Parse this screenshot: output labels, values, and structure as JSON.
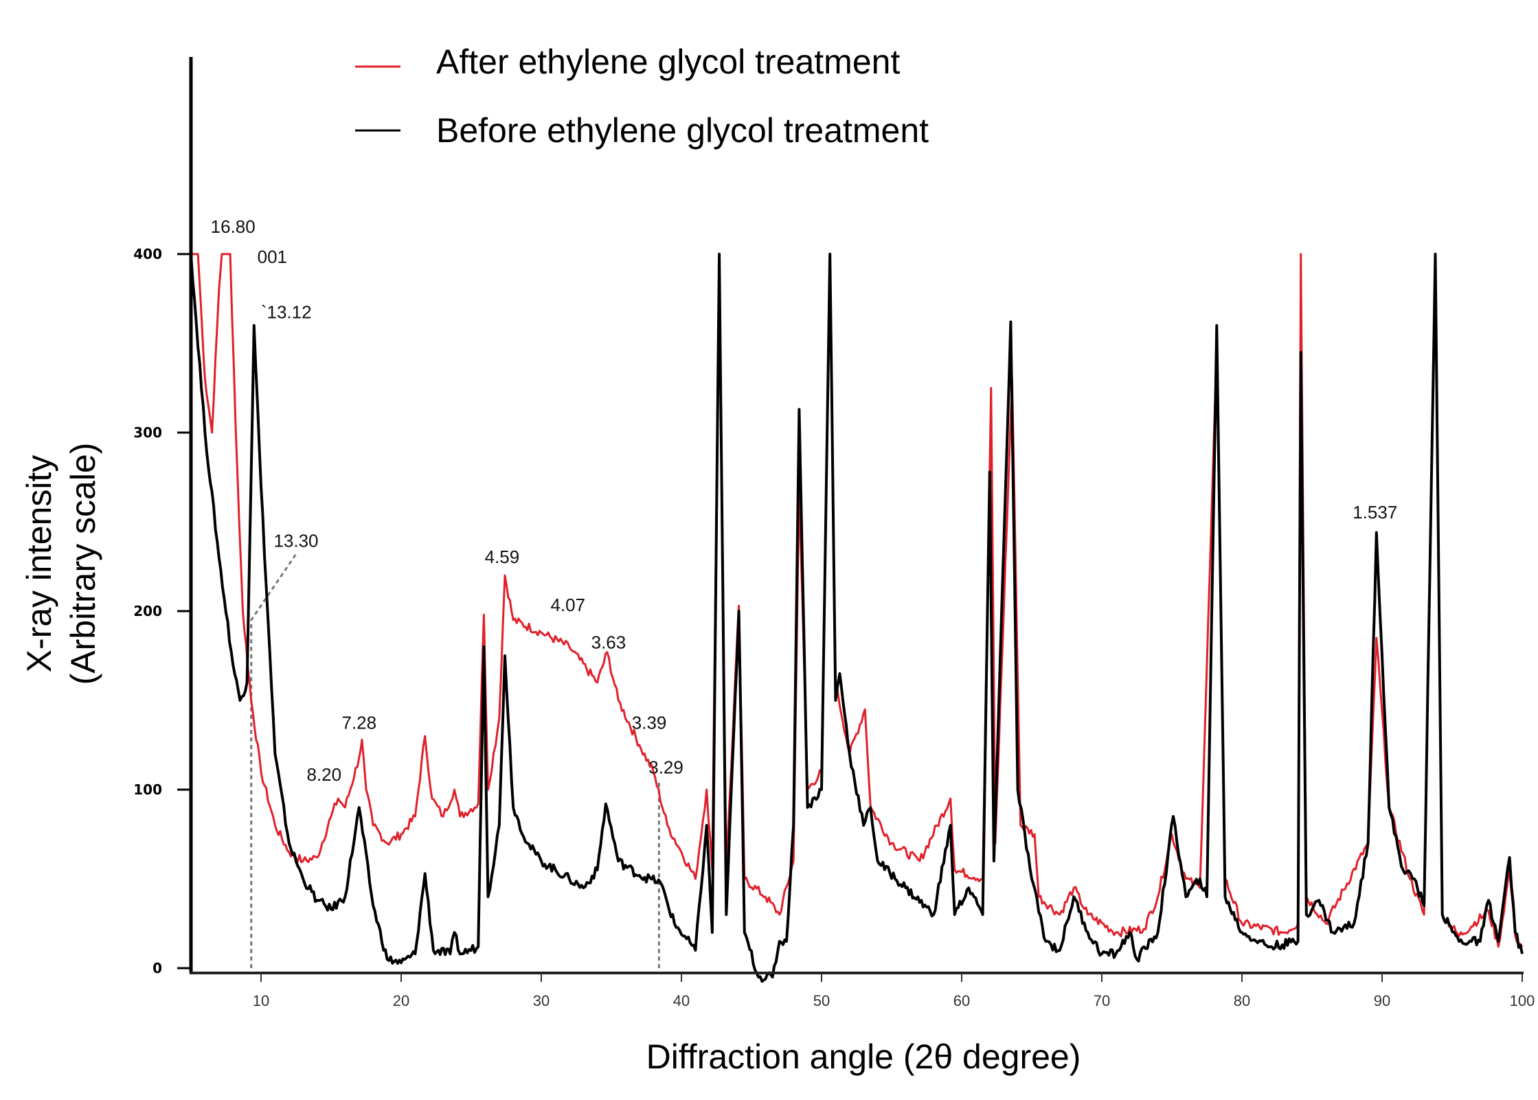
{
  "chart_data": {
    "type": "line",
    "title": "",
    "xlabel": "Diffraction angle (2θ degree)",
    "ylabel_line1": "X-ray intensity",
    "ylabel_line2": "(Arbitrary scale)",
    "xlim": [
      5,
      100
    ],
    "ylim": [
      0,
      400
    ],
    "xticks": [
      10,
      20,
      30,
      40,
      50,
      60,
      70,
      80,
      90,
      100
    ],
    "yticks": [
      0,
      100,
      200,
      300,
      400
    ],
    "grid": false,
    "legend_position": "top-left",
    "series": [
      {
        "name": "After ethylene glycol treatment",
        "color": "#e0202a",
        "points": [
          [
            5,
            400
          ],
          [
            5.5,
            400
          ],
          [
            6,
            330
          ],
          [
            6.5,
            300
          ],
          [
            7,
            380
          ],
          [
            7.2,
            400
          ],
          [
            7.8,
            400
          ],
          [
            8.2,
            300
          ],
          [
            8.7,
            200
          ],
          [
            9.3,
            150
          ],
          [
            10,
            110
          ],
          [
            11,
            80
          ],
          [
            12,
            65
          ],
          [
            13,
            60
          ],
          [
            14,
            62
          ],
          [
            15,
            85
          ],
          [
            15.5,
            95
          ],
          [
            16,
            90
          ],
          [
            17,
            118
          ],
          [
            17.2,
            128
          ],
          [
            17.5,
            100
          ],
          [
            18,
            80
          ],
          [
            19,
            70
          ],
          [
            20,
            75
          ],
          [
            21,
            85
          ],
          [
            21.7,
            130
          ],
          [
            22.2,
            95
          ],
          [
            23,
            85
          ],
          [
            23.8,
            100
          ],
          [
            24.2,
            85
          ],
          [
            25.5,
            92
          ],
          [
            25.9,
            198
          ],
          [
            26.2,
            100
          ],
          [
            27,
            140
          ],
          [
            27.4,
            220
          ],
          [
            28,
            195
          ],
          [
            30,
            188
          ],
          [
            32,
            180
          ],
          [
            34,
            160
          ],
          [
            34.7,
            177
          ],
          [
            35.5,
            150
          ],
          [
            37,
            125
          ],
          [
            38,
            110
          ],
          [
            39,
            80
          ],
          [
            40,
            65
          ],
          [
            41,
            50
          ],
          [
            41.8,
            100
          ],
          [
            42.2,
            55
          ],
          [
            42.7,
            400
          ],
          [
            43.2,
            55
          ],
          [
            44.1,
            203
          ],
          [
            44.5,
            50
          ],
          [
            46,
            40
          ],
          [
            47,
            30
          ],
          [
            48,
            60
          ],
          [
            48.4,
            270
          ],
          [
            49,
            100
          ],
          [
            50,
            110
          ],
          [
            50.6,
            400
          ],
          [
            51,
            160
          ],
          [
            52,
            120
          ],
          [
            53.1,
            145
          ],
          [
            53.5,
            90
          ],
          [
            55,
            70
          ],
          [
            57,
            60
          ],
          [
            59.2,
            95
          ],
          [
            59.5,
            55
          ],
          [
            61.5,
            50
          ],
          [
            62.1,
            325
          ],
          [
            62.4,
            70
          ],
          [
            63.6,
            330
          ],
          [
            64.2,
            80
          ],
          [
            65.2,
            75
          ],
          [
            65.5,
            40
          ],
          [
            67,
            30
          ],
          [
            68,
            45
          ],
          [
            69,
            30
          ],
          [
            71,
            20
          ],
          [
            73,
            22
          ],
          [
            74,
            40
          ],
          [
            75,
            75
          ],
          [
            76,
            50
          ],
          [
            77,
            45
          ],
          [
            78.2,
            345
          ],
          [
            78.8,
            50
          ],
          [
            80,
            25
          ],
          [
            83,
            20
          ],
          [
            84,
            25
          ],
          [
            84.2,
            400
          ],
          [
            84.6,
            40
          ],
          [
            86,
            25
          ],
          [
            89,
            70
          ],
          [
            89.6,
            185
          ],
          [
            90.5,
            90
          ],
          [
            92,
            50
          ],
          [
            93,
            30
          ],
          [
            93.8,
            400
          ],
          [
            94.3,
            30
          ],
          [
            95.5,
            18
          ],
          [
            97.6,
            32
          ],
          [
            98.3,
            12
          ],
          [
            99.1,
            55
          ],
          [
            99.5,
            18
          ],
          [
            100,
            12
          ]
        ]
      },
      {
        "name": "Before ethylene glycol treatment",
        "color": "#000000",
        "points": [
          [
            5,
            400
          ],
          [
            6,
            300
          ],
          [
            7,
            230
          ],
          [
            8,
            170
          ],
          [
            8.5,
            150
          ],
          [
            9,
            160
          ],
          [
            9.5,
            360
          ],
          [
            10,
            270
          ],
          [
            11,
            120
          ],
          [
            12,
            70
          ],
          [
            13,
            50
          ],
          [
            14,
            38
          ],
          [
            15,
            33
          ],
          [
            16,
            40
          ],
          [
            17,
            90
          ],
          [
            18,
            35
          ],
          [
            19,
            5
          ],
          [
            20,
            3
          ],
          [
            21,
            8
          ],
          [
            21.7,
            53
          ],
          [
            22.3,
            10
          ],
          [
            23.5,
            8
          ],
          [
            23.8,
            20
          ],
          [
            24.2,
            8
          ],
          [
            25.5,
            12
          ],
          [
            25.9,
            180
          ],
          [
            26.2,
            40
          ],
          [
            27,
            80
          ],
          [
            27.4,
            175
          ],
          [
            28,
            90
          ],
          [
            29,
            70
          ],
          [
            30,
            60
          ],
          [
            32,
            50
          ],
          [
            33,
            45
          ],
          [
            34,
            55
          ],
          [
            34.6,
            92
          ],
          [
            35.5,
            60
          ],
          [
            37,
            52
          ],
          [
            38.5,
            48
          ],
          [
            39.5,
            25
          ],
          [
            41,
            10
          ],
          [
            41.8,
            80
          ],
          [
            42.2,
            20
          ],
          [
            42.7,
            400
          ],
          [
            43.2,
            30
          ],
          [
            44.1,
            200
          ],
          [
            44.5,
            20
          ],
          [
            45.5,
            -5
          ],
          [
            46.5,
            -5
          ],
          [
            47,
            15
          ],
          [
            47.5,
            15
          ],
          [
            48,
            80
          ],
          [
            48.4,
            313
          ],
          [
            49,
            90
          ],
          [
            50,
            100
          ],
          [
            50.6,
            400
          ],
          [
            51,
            150
          ],
          [
            51.3,
            165
          ],
          [
            52,
            120
          ],
          [
            53,
            80
          ],
          [
            53.5,
            90
          ],
          [
            54,
            60
          ],
          [
            56,
            45
          ],
          [
            58,
            30
          ],
          [
            59.2,
            80
          ],
          [
            59.5,
            30
          ],
          [
            60.5,
            45
          ],
          [
            61.5,
            30
          ],
          [
            62,
            278
          ],
          [
            62.3,
            60
          ],
          [
            63.5,
            362
          ],
          [
            64,
            100
          ],
          [
            65,
            50
          ],
          [
            66,
            15
          ],
          [
            67,
            10
          ],
          [
            68,
            40
          ],
          [
            69,
            20
          ],
          [
            70,
            8
          ],
          [
            71,
            8
          ],
          [
            72,
            20
          ],
          [
            72.5,
            5
          ],
          [
            74,
            20
          ],
          [
            75.1,
            85
          ],
          [
            76,
            40
          ],
          [
            77,
            50
          ],
          [
            77.5,
            40
          ],
          [
            78.2,
            360
          ],
          [
            78.8,
            40
          ],
          [
            80,
            20
          ],
          [
            82,
            12
          ],
          [
            84,
            15
          ],
          [
            84.2,
            345
          ],
          [
            84.6,
            30
          ],
          [
            85.5,
            38
          ],
          [
            86.5,
            20
          ],
          [
            88,
            25
          ],
          [
            89,
            70
          ],
          [
            89.6,
            244
          ],
          [
            90.5,
            90
          ],
          [
            91.5,
            55
          ],
          [
            92.3,
            50
          ],
          [
            93,
            35
          ],
          [
            93.8,
            400
          ],
          [
            94.3,
            30
          ],
          [
            95.5,
            15
          ],
          [
            97,
            15
          ],
          [
            97.6,
            38
          ],
          [
            98.3,
            15
          ],
          [
            99.1,
            62
          ],
          [
            99.5,
            20
          ],
          [
            100,
            8
          ]
        ]
      }
    ],
    "annotations": [
      {
        "text": "16.80",
        "x": 8.0,
        "y": 412
      },
      {
        "text": "001",
        "x": 10.8,
        "y": 395
      },
      {
        "text": "`13.12",
        "x": 11.8,
        "y": 364
      },
      {
        "text": "13.30",
        "x": 12.5,
        "y": 236
      },
      {
        "text": "4.59",
        "x": 27.2,
        "y": 227
      },
      {
        "text": "4.07",
        "x": 31.9,
        "y": 200
      },
      {
        "text": "3.63",
        "x": 34.8,
        "y": 179
      },
      {
        "text": "3.39",
        "x": 37.7,
        "y": 134
      },
      {
        "text": "3.29",
        "x": 38.9,
        "y": 109
      },
      {
        "text": "7.28",
        "x": 17.0,
        "y": 134
      },
      {
        "text": "8.20",
        "x": 14.5,
        "y": 105
      },
      {
        "text": "1.537",
        "x": 89.5,
        "y": 252
      }
    ],
    "reference_lines": [
      {
        "points": [
          [
            9.3,
            0
          ],
          [
            9.3,
            195
          ],
          [
            12.5,
            232
          ]
        ]
      },
      {
        "points": [
          [
            38.4,
            0
          ],
          [
            38.4,
            105
          ]
        ]
      }
    ]
  }
}
